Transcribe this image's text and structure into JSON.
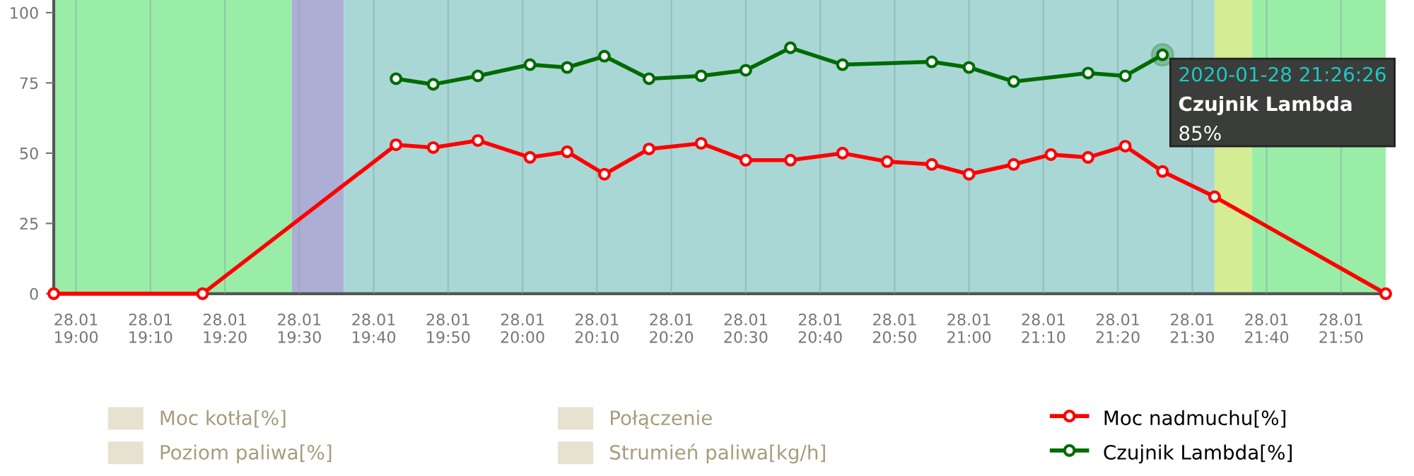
{
  "chart_data": {
    "type": "line",
    "marker": "circle",
    "line_style": "solid",
    "grid": "x",
    "legend": "bottom",
    "xlim": [
      "2020-01-28T18:57",
      "2020-01-28T21:56"
    ],
    "ylim": [
      0,
      104.5
    ],
    "yticks": [
      0,
      25,
      50,
      75,
      100
    ],
    "xticks": [
      {
        "value": "2020-01-28T19:00",
        "label": "28.01\n19:00"
      },
      {
        "value": "2020-01-28T19:10",
        "label": "28.01\n19:10"
      },
      {
        "value": "2020-01-28T19:20",
        "label": "28.01\n19:20"
      },
      {
        "value": "2020-01-28T19:30",
        "label": "28.01\n19:30"
      },
      {
        "value": "2020-01-28T19:40",
        "label": "28.01\n19:40"
      },
      {
        "value": "2020-01-28T19:50",
        "label": "28.01\n19:50"
      },
      {
        "value": "2020-01-28T20:00",
        "label": "28.01\n20:00"
      },
      {
        "value": "2020-01-28T20:10",
        "label": "28.01\n20:10"
      },
      {
        "value": "2020-01-28T20:20",
        "label": "28.01\n20:20"
      },
      {
        "value": "2020-01-28T20:30",
        "label": "28.01\n20:30"
      },
      {
        "value": "2020-01-28T20:40",
        "label": "28.01\n20:40"
      },
      {
        "value": "2020-01-28T20:50",
        "label": "28.01\n20:50"
      },
      {
        "value": "2020-01-28T21:00",
        "label": "28.01\n21:00"
      },
      {
        "value": "2020-01-28T21:10",
        "label": "28.01\n21:10"
      },
      {
        "value": "2020-01-28T21:20",
        "label": "28.01\n21:20"
      },
      {
        "value": "2020-01-28T21:30",
        "label": "28.01\n21:30"
      },
      {
        "value": "2020-01-28T21:40",
        "label": "28.01\n21:40"
      },
      {
        "value": "2020-01-28T21:50",
        "label": "28.01\n21:50"
      }
    ],
    "bands": [
      {
        "axis": "x",
        "from": "2020-01-28T18:57",
        "to": "2020-01-28T19:29",
        "color": "#9aeda6"
      },
      {
        "axis": "x",
        "from": "2020-01-28T19:29",
        "to": "2020-01-28T19:36",
        "color": "#adaed6"
      },
      {
        "axis": "x",
        "from": "2020-01-28T19:36",
        "to": "2020-01-28T21:33",
        "color": "#a9d7d6"
      },
      {
        "axis": "x",
        "from": "2020-01-28T21:33",
        "to": "2020-01-28T21:38",
        "color": "#d4ec94"
      },
      {
        "axis": "x",
        "from": "2020-01-28T21:38",
        "to": "2020-01-28T21:56",
        "color": "#9aeda6"
      }
    ],
    "series": [
      {
        "name": "Moc kotła[%]",
        "color": "#e6e2cf"
      },
      {
        "name": "Połączenie",
        "color": "#e6e2cf"
      },
      {
        "name": "Moc nadmuchu[%]",
        "color": "#ff0000",
        "x": [
          "2020-01-28T18:57",
          "2020-01-28T19:17",
          "2020-01-28T19:43",
          "2020-01-28T19:48",
          "2020-01-28T19:54",
          "2020-01-28T20:01",
          "2020-01-28T20:06",
          "2020-01-28T20:11",
          "2020-01-28T20:17",
          "2020-01-28T20:24",
          "2020-01-28T20:30",
          "2020-01-28T20:36",
          "2020-01-28T20:43",
          "2020-01-28T20:49",
          "2020-01-28T20:55",
          "2020-01-28T21:00",
          "2020-01-28T21:06",
          "2020-01-28T21:11",
          "2020-01-28T21:16",
          "2020-01-28T21:21",
          "2020-01-28T21:26",
          "2020-01-28T21:33",
          "2020-01-28T21:56"
        ],
        "values": [
          0,
          0,
          53,
          52,
          54.5,
          48.5,
          50.5,
          42.5,
          51.5,
          53.5,
          47.5,
          47.5,
          50,
          47,
          46,
          42.5,
          46,
          49.5,
          48.5,
          52.5,
          43.5,
          34.5,
          0
        ]
      },
      {
        "name": "Poziom paliwa[%]",
        "color": "#e6e2cf"
      },
      {
        "name": "Strumień paliwa[kg/h]",
        "color": "#e6e2cf"
      },
      {
        "name": "Czujnik Lambda[%]",
        "color": "#006b00",
        "x": [
          "2020-01-28T19:43",
          "2020-01-28T19:48",
          "2020-01-28T19:54",
          "2020-01-28T20:01",
          "2020-01-28T20:06",
          "2020-01-28T20:11",
          "2020-01-28T20:17",
          "2020-01-28T20:24",
          "2020-01-28T20:30",
          "2020-01-28T20:36",
          "2020-01-28T20:43",
          "2020-01-28T20:55",
          "2020-01-28T21:00",
          "2020-01-28T21:06",
          "2020-01-28T21:16",
          "2020-01-28T21:21",
          "2020-01-28T21:26"
        ],
        "values": [
          76.5,
          74.5,
          77.5,
          81.5,
          80.5,
          84.5,
          76.5,
          77.5,
          79.5,
          87.5,
          81.5,
          82.5,
          80.5,
          75.5,
          78.5,
          77.5,
          85
        ]
      }
    ],
    "annotations": [
      {
        "text": "2020-01-28 21:26:26\nCzujnik Lambda\n85%",
        "x": "2020-01-28T21:26",
        "y": 85
      }
    ]
  }
}
